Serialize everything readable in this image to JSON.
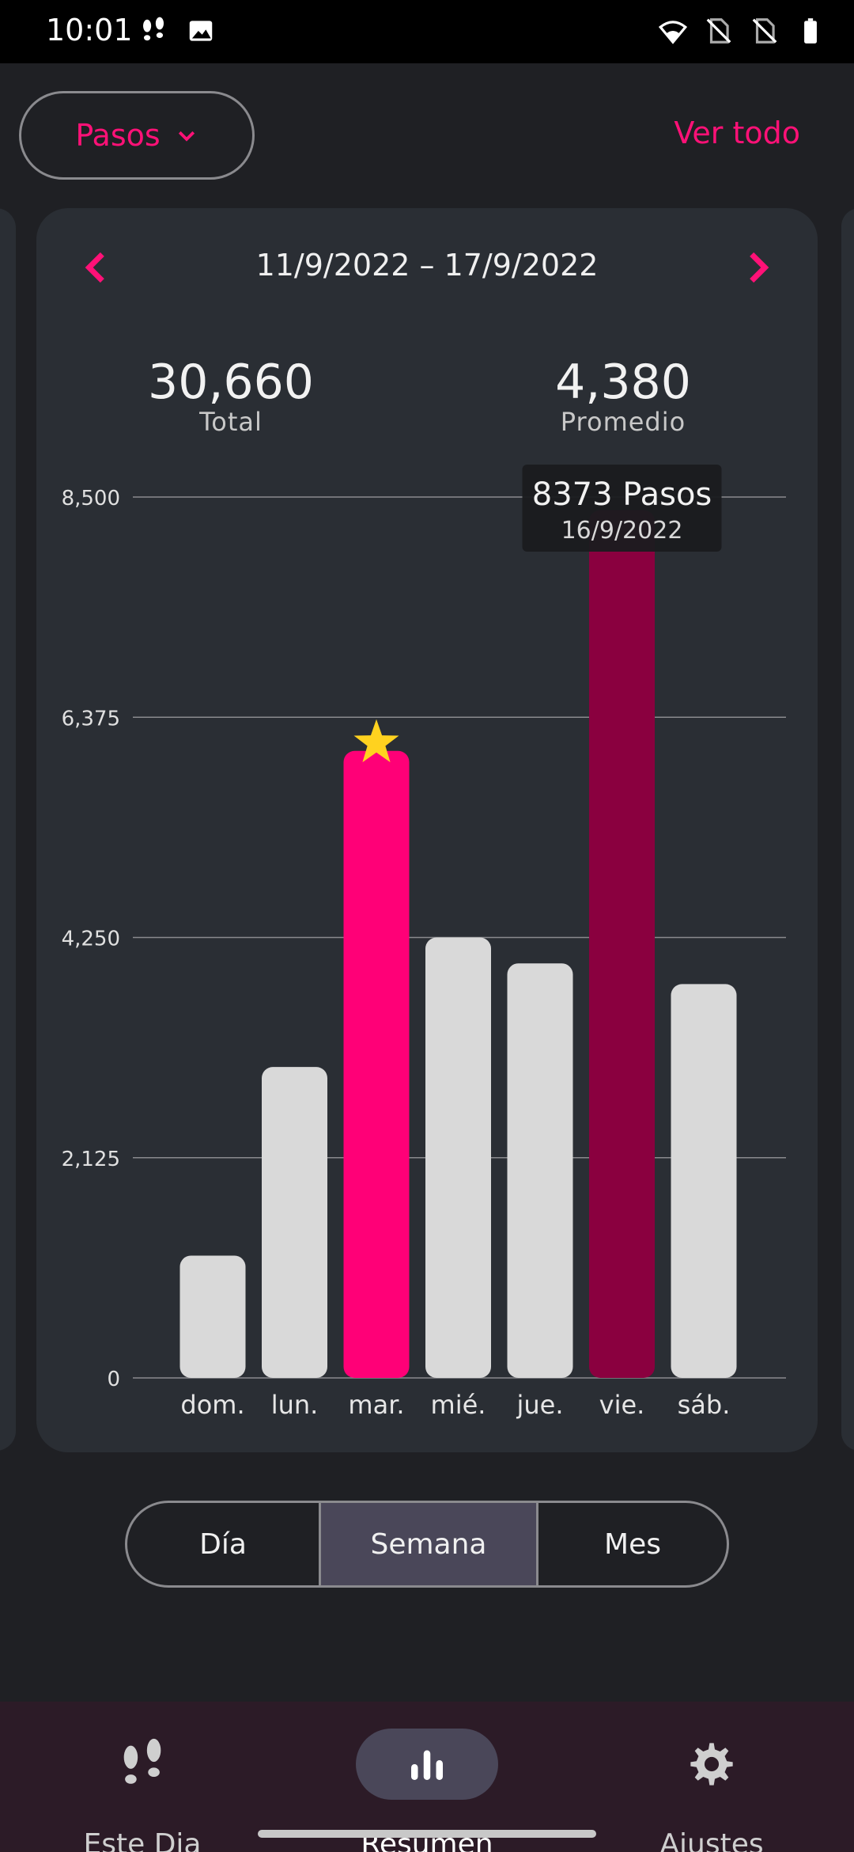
{
  "status_bar": {
    "time": "10:01",
    "left_icons": [
      "footsteps-icon",
      "image-icon"
    ],
    "right_icons": [
      "wifi-icon",
      "no-sim-icon",
      "no-sim-icon",
      "battery-icon"
    ]
  },
  "header": {
    "metric_label": "Pasos",
    "see_all_label": "Ver todo"
  },
  "card": {
    "date_range": "11/9/2022 – 17/9/2022",
    "total_value": "30,660",
    "total_label": "Total",
    "average_value": "4,380",
    "average_label": "Promedio"
  },
  "chart_data": {
    "type": "bar",
    "categories": [
      "dom.",
      "lun.",
      "mar.",
      "mié.",
      "jue.",
      "vie.",
      "sáb."
    ],
    "values": [
      1180,
      3000,
      6050,
      4250,
      4000,
      8373,
      3800
    ],
    "y_ticks": [
      "0",
      "2,125",
      "4,250",
      "6,375",
      "8,500"
    ],
    "ylim": [
      0,
      8500
    ],
    "grid": true,
    "highlighted_index": 2,
    "selected_index": 5,
    "star_on_index": 2,
    "tooltip": {
      "value": "8373 Pasos",
      "date": "16/9/2022"
    },
    "colors": {
      "bar_default": "#d9d9d9",
      "bar_highlight": "#ff0077",
      "bar_selected": "#8a003f",
      "star": "#ffd21f",
      "grid": "#8a8a8e"
    }
  },
  "period_tabs": [
    "Día",
    "Semana",
    "Mes"
  ],
  "period_selected": "Semana",
  "bottom_nav": [
    {
      "label": "Este Dia",
      "icon": "footsteps-icon",
      "active": false
    },
    {
      "label": "Resumen",
      "icon": "bar-chart-icon",
      "active": true
    },
    {
      "label": "Ajustes",
      "icon": "gear-icon",
      "active": false
    }
  ],
  "colors": {
    "accent": "#ff1177",
    "background": "#1f2024",
    "card": "#2a2e34",
    "nav_bg": "#2c1b27"
  }
}
